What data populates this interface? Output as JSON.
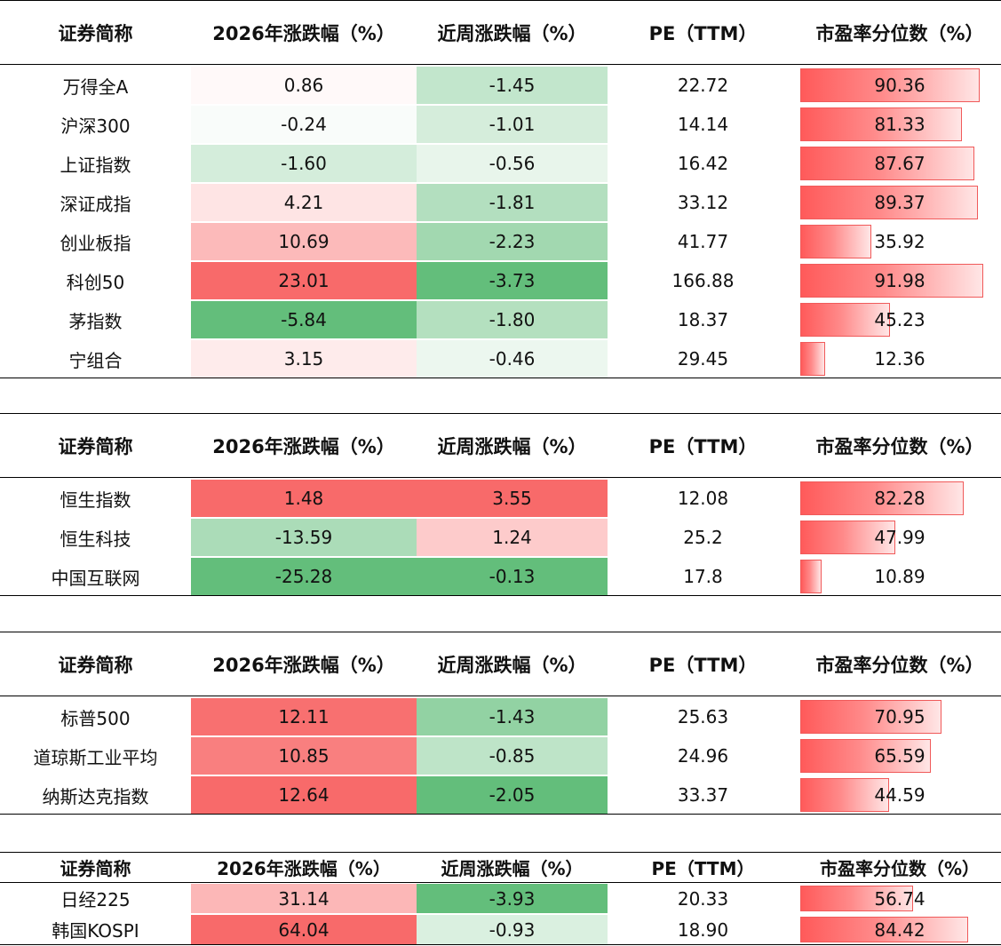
{
  "headers": {
    "name": "证券简称",
    "ytd": "2026年涨跌幅（%）",
    "week": "近周涨跌幅（%）",
    "pe": "PE（TTM）",
    "pct": "市盈率分位数（%）"
  },
  "colors": {
    "up": "#f86a6a",
    "down": "#63be7b",
    "bar": "#ff5a5a"
  },
  "tables": [
    {
      "rows": [
        {
          "name": "万得全A",
          "ytd": "0.86",
          "week": "-1.45",
          "pe": "22.72",
          "pct": "90.36",
          "ytd_v": 0.86,
          "week_v": -1.45,
          "pct_v": 90.36
        },
        {
          "name": "沪深300",
          "ytd": "-0.24",
          "week": "-1.01",
          "pe": "14.14",
          "pct": "81.33",
          "ytd_v": -0.24,
          "week_v": -1.01,
          "pct_v": 81.33
        },
        {
          "name": "上证指数",
          "ytd": "-1.60",
          "week": "-0.56",
          "pe": "16.42",
          "pct": "87.67",
          "ytd_v": -1.6,
          "week_v": -0.56,
          "pct_v": 87.67
        },
        {
          "name": "深证成指",
          "ytd": "4.21",
          "week": "-1.81",
          "pe": "33.12",
          "pct": "89.37",
          "ytd_v": 4.21,
          "week_v": -1.81,
          "pct_v": 89.37
        },
        {
          "name": "创业板指",
          "ytd": "10.69",
          "week": "-2.23",
          "pe": "41.77",
          "pct": "35.92",
          "ytd_v": 10.69,
          "week_v": -2.23,
          "pct_v": 35.92
        },
        {
          "name": "科创50",
          "ytd": "23.01",
          "week": "-3.73",
          "pe": "166.88",
          "pct": "91.98",
          "ytd_v": 23.01,
          "week_v": -3.73,
          "pct_v": 91.98
        },
        {
          "name": "茅指数",
          "ytd": "-5.84",
          "week": "-1.80",
          "pe": "18.37",
          "pct": "45.23",
          "ytd_v": -5.84,
          "week_v": -1.8,
          "pct_v": 45.23
        },
        {
          "name": "宁组合",
          "ytd": "3.15",
          "week": "-0.46",
          "pe": "29.45",
          "pct": "12.36",
          "ytd_v": 3.15,
          "week_v": -0.46,
          "pct_v": 12.36
        }
      ]
    },
    {
      "rows": [
        {
          "name": "恒生指数",
          "ytd": "1.48",
          "week": "3.55",
          "pe": "12.08",
          "pct": "82.28",
          "ytd_v": 1.48,
          "week_v": 3.55,
          "pct_v": 82.28
        },
        {
          "name": "恒生科技",
          "ytd": "-13.59",
          "week": "1.24",
          "pe": "25.2",
          "pct": "47.99",
          "ytd_v": -13.59,
          "week_v": 1.24,
          "pct_v": 47.99
        },
        {
          "name": "中国互联网",
          "ytd": "-25.28",
          "week": "-0.13",
          "pe": "17.8",
          "pct": "10.89",
          "ytd_v": -25.28,
          "week_v": -0.13,
          "pct_v": 10.89
        }
      ]
    },
    {
      "rows": [
        {
          "name": "标普500",
          "ytd": "12.11",
          "week": "-1.43",
          "pe": "25.63",
          "pct": "70.95",
          "ytd_v": 12.11,
          "week_v": -1.43,
          "pct_v": 70.95
        },
        {
          "name": "道琼斯工业平均",
          "ytd": "10.85",
          "week": "-0.85",
          "pe": "24.96",
          "pct": "65.59",
          "ytd_v": 10.85,
          "week_v": -0.85,
          "pct_v": 65.59
        },
        {
          "name": "纳斯达克指数",
          "ytd": "12.64",
          "week": "-2.05",
          "pe": "33.37",
          "pct": "44.59",
          "ytd_v": 12.64,
          "week_v": -2.05,
          "pct_v": 44.59
        }
      ]
    },
    {
      "rows": [
        {
          "name": "日经225",
          "ytd": "31.14",
          "week": "-3.93",
          "pe": "20.33",
          "pct": "56.74",
          "ytd_v": 31.14,
          "week_v": -3.93,
          "pct_v": 56.74
        },
        {
          "name": "韩国KOSPI",
          "ytd": "64.04",
          "week": "-0.93",
          "pe": "18.90",
          "pct": "84.42",
          "ytd_v": 64.04,
          "week_v": -0.93,
          "pct_v": 84.42
        }
      ]
    }
  ],
  "chart_data": {
    "type": "table",
    "columns": [
      "证券简称",
      "2026年涨跌幅（%）",
      "近周涨跌幅（%）",
      "PE（TTM）",
      "市盈率分位数（%）"
    ],
    "groups": [
      [
        [
          "万得全A",
          0.86,
          -1.45,
          22.72,
          90.36
        ],
        [
          "沪深300",
          -0.24,
          -1.01,
          14.14,
          81.33
        ],
        [
          "上证指数",
          -1.6,
          -0.56,
          16.42,
          87.67
        ],
        [
          "深证成指",
          4.21,
          -1.81,
          33.12,
          89.37
        ],
        [
          "创业板指",
          10.69,
          -2.23,
          41.77,
          35.92
        ],
        [
          "科创50",
          23.01,
          -3.73,
          166.88,
          91.98
        ],
        [
          "茅指数",
          -5.84,
          -1.8,
          18.37,
          45.23
        ],
        [
          "宁组合",
          3.15,
          -0.46,
          29.45,
          12.36
        ]
      ],
      [
        [
          "恒生指数",
          1.48,
          3.55,
          12.08,
          82.28
        ],
        [
          "恒生科技",
          -13.59,
          1.24,
          25.2,
          47.99
        ],
        [
          "中国互联网",
          -25.28,
          -0.13,
          17.8,
          10.89
        ]
      ],
      [
        [
          "标普500",
          12.11,
          -1.43,
          25.63,
          70.95
        ],
        [
          "道琼斯工业平均",
          10.85,
          -0.85,
          24.96,
          65.59
        ],
        [
          "纳斯达克指数",
          12.64,
          -2.05,
          33.37,
          44.59
        ]
      ],
      [
        [
          "日经225",
          31.14,
          -3.93,
          20.33,
          56.74
        ],
        [
          "韩国KOSPI",
          64.04,
          -0.93,
          18.9,
          84.42
        ]
      ]
    ]
  }
}
